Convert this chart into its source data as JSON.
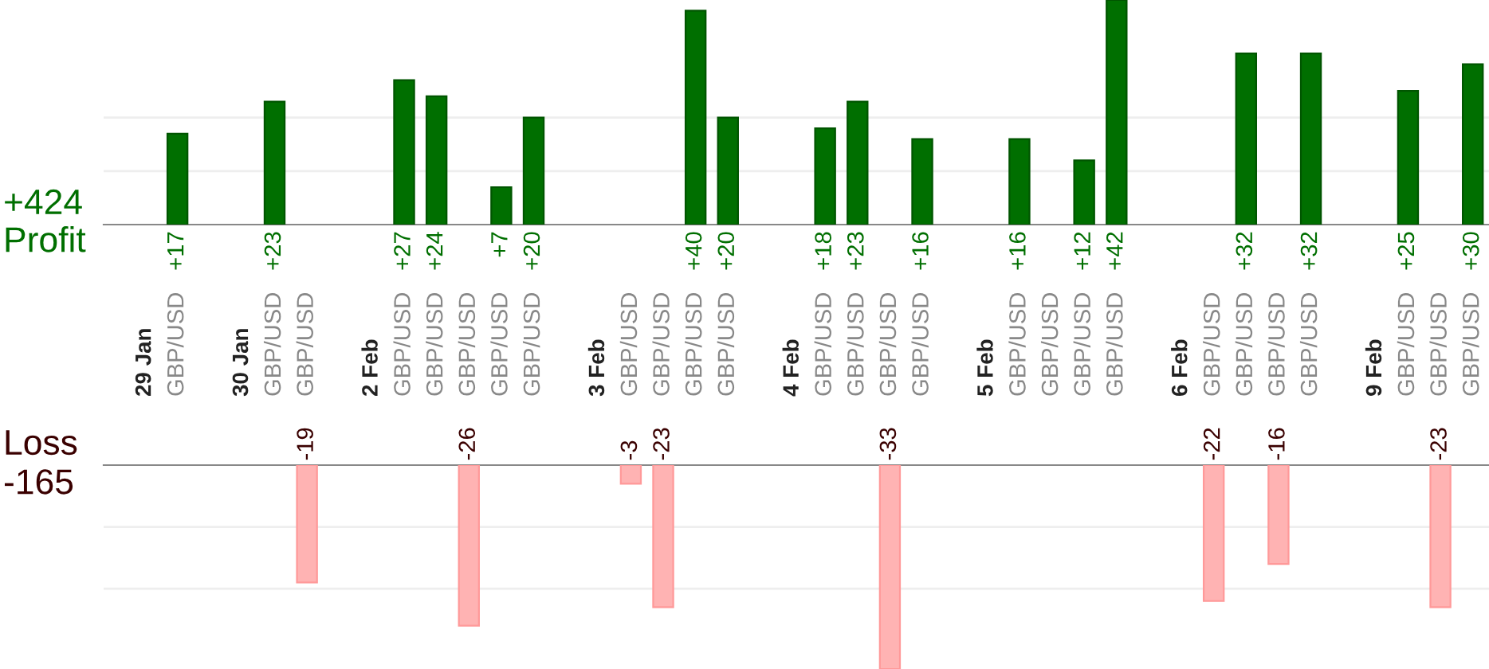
{
  "chart_data": [
    {
      "type": "bar",
      "ylabel": "Profit",
      "annotations": [
        "+424"
      ],
      "categories": [
        "29 Jan",
        "GBP/USD",
        null,
        "30 Jan",
        "GBP/USD",
        "GBP/USD",
        null,
        "2 Feb",
        "GBP/USD",
        "GBP/USD",
        "GBP/USD",
        "GBP/USD",
        "GBP/USD",
        null,
        "3 Feb",
        "GBP/USD",
        "GBP/USD",
        "GBP/USD",
        "GBP/USD",
        null,
        "4 Feb",
        "GBP/USD",
        "GBP/USD",
        "GBP/USD",
        "GBP/USD",
        null,
        "5 Feb",
        "GBP/USD",
        "GBP/USD",
        "GBP/USD",
        "GBP/USD",
        null,
        "6 Feb",
        "GBP/USD",
        "GBP/USD",
        "GBP/USD",
        "GBP/USD",
        null,
        "9 Feb",
        "GBP/USD",
        "GBP/USD",
        "GBP/USD"
      ],
      "series": [
        {
          "color": "#006f00",
          "values": [
            null,
            17,
            null,
            null,
            23,
            null,
            null,
            null,
            27,
            24,
            null,
            7,
            20,
            null,
            null,
            null,
            null,
            40,
            20,
            null,
            null,
            18,
            23,
            null,
            16,
            null,
            null,
            16,
            null,
            12,
            42,
            null,
            null,
            null,
            32,
            null,
            32,
            null,
            null,
            25,
            null,
            30
          ],
          "value_labels": [
            null,
            "+17",
            null,
            null,
            "+23",
            null,
            null,
            null,
            "+27",
            "+24",
            null,
            "+7",
            "+20",
            null,
            null,
            null,
            null,
            "+40",
            "+20",
            null,
            null,
            "+18",
            "+23",
            null,
            "+16",
            null,
            null,
            "+16",
            null,
            "+12",
            "+42",
            null,
            null,
            null,
            "+32",
            null,
            "+32",
            null,
            null,
            "+25",
            null,
            "+30"
          ]
        }
      ],
      "ref_lines": [
        {
          "axis": "y",
          "value": 10,
          "color": "#eeeeee"
        },
        {
          "axis": "y",
          "value": 20,
          "color": "#eeeeee"
        }
      ]
    },
    {
      "type": "bar",
      "ylabel": "Loss",
      "annotations": [
        "-165"
      ],
      "series": [
        {
          "color": "#ffb3b3",
          "values": [
            null,
            null,
            null,
            null,
            null,
            -19,
            null,
            null,
            null,
            null,
            -26,
            null,
            null,
            null,
            null,
            -3,
            -23,
            null,
            null,
            null,
            null,
            null,
            null,
            -33,
            null,
            null,
            null,
            null,
            null,
            null,
            null,
            null,
            null,
            -22,
            null,
            -16,
            null,
            null,
            null,
            null,
            -23,
            null
          ],
          "value_labels": [
            null,
            null,
            null,
            null,
            null,
            "-19",
            null,
            null,
            null,
            null,
            "-26",
            null,
            null,
            null,
            null,
            "-3",
            "-23",
            null,
            null,
            null,
            null,
            null,
            null,
            "-33",
            null,
            null,
            null,
            null,
            null,
            null,
            null,
            null,
            null,
            "-22",
            null,
            "-16",
            null,
            null,
            null,
            null,
            "-23",
            null
          ]
        }
      ],
      "ref_lines": [
        {
          "axis": "y",
          "value": -10,
          "color": "#eeeeee"
        },
        {
          "axis": "y",
          "value": -20,
          "color": "#eeeeee"
        }
      ]
    }
  ]
}
